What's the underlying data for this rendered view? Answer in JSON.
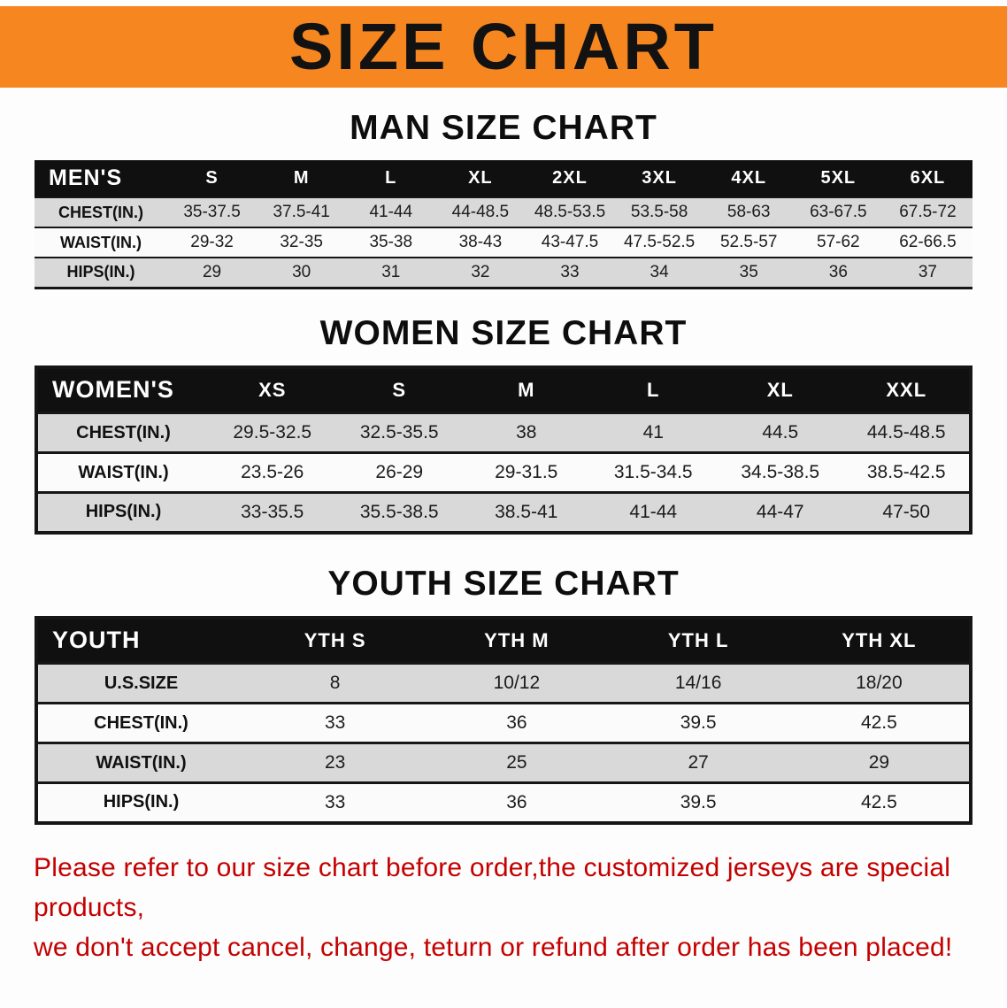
{
  "banner": {
    "title": "SIZE CHART",
    "bg_color": "#F6861F"
  },
  "sections": {
    "men": {
      "heading": "MAN SIZE CHART",
      "table": {
        "header": [
          "MEN'S",
          "S",
          "M",
          "L",
          "XL",
          "2XL",
          "3XL",
          "4XL",
          "5XL",
          "6XL"
        ],
        "rows": [
          [
            "CHEST(IN.)",
            "35-37.5",
            "37.5-41",
            "41-44",
            "44-48.5",
            "48.5-53.5",
            "53.5-58",
            "58-63",
            "63-67.5",
            "67.5-72"
          ],
          [
            "WAIST(IN.)",
            "29-32",
            "32-35",
            "35-38",
            "38-43",
            "43-47.5",
            "47.5-52.5",
            "52.5-57",
            "57-62",
            "62-66.5"
          ],
          [
            "HIPS(IN.)",
            "29",
            "30",
            "31",
            "32",
            "33",
            "34",
            "35",
            "36",
            "37"
          ]
        ]
      }
    },
    "women": {
      "heading": "WOMEN SIZE CHART",
      "table": {
        "header": [
          "WOMEN'S",
          "XS",
          "S",
          "M",
          "L",
          "XL",
          "XXL"
        ],
        "rows": [
          [
            "CHEST(IN.)",
            "29.5-32.5",
            "32.5-35.5",
            "38",
            "41",
            "44.5",
            "44.5-48.5"
          ],
          [
            "WAIST(IN.)",
            "23.5-26",
            "26-29",
            "29-31.5",
            "31.5-34.5",
            "34.5-38.5",
            "38.5-42.5"
          ],
          [
            "HIPS(IN.)",
            "33-35.5",
            "35.5-38.5",
            "38.5-41",
            "41-44",
            "44-47",
            "47-50"
          ]
        ]
      }
    },
    "youth": {
      "heading": "YOUTH SIZE CHART",
      "table": {
        "header": [
          "YOUTH",
          "YTH S",
          "YTH M",
          "YTH L",
          "YTH XL"
        ],
        "rows": [
          [
            "U.S.SIZE",
            "8",
            "10/12",
            "14/16",
            "18/20"
          ],
          [
            "CHEST(IN.)",
            "33",
            "36",
            "39.5",
            "42.5"
          ],
          [
            "WAIST(IN.)",
            "23",
            "25",
            "27",
            "29"
          ],
          [
            "HIPS(IN.)",
            "33",
            "36",
            "39.5",
            "42.5"
          ]
        ]
      }
    }
  },
  "disclaimer": {
    "line1": "Please refer to our size chart before order,the customized jerseys are special products,",
    "line2": "we don't accept cancel, change, teturn or refund after order has been placed!",
    "color": "#C40000"
  }
}
